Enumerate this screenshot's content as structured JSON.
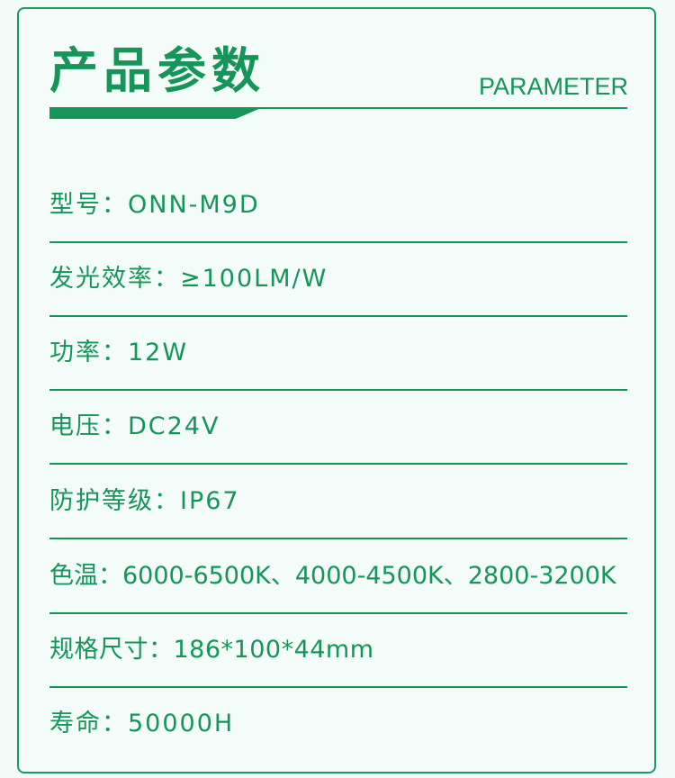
{
  "header": {
    "title": "产品参数",
    "subtitle": "PARAMETER"
  },
  "params": [
    {
      "text": "型号：ONN-M9D"
    },
    {
      "text": "发光效率：≥100LM/W"
    },
    {
      "text": "功率：12W"
    },
    {
      "text": "电压：DC24V"
    },
    {
      "text": "防护等级：IP67"
    },
    {
      "text": "色温：6000-6500K、4000-4500K、2800-3200K"
    },
    {
      "text": "规格尺寸：186*100*44mm"
    },
    {
      "text": "寿命：50000H"
    }
  ],
  "colors": {
    "accent": "#16955a",
    "background": "#f4fcfa"
  }
}
